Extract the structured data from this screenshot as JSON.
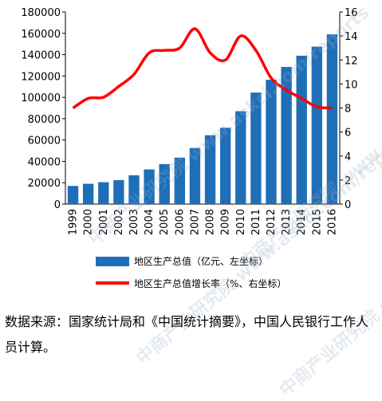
{
  "chart_data": {
    "type": "bar",
    "categories": [
      "1999",
      "2000",
      "2001",
      "2002",
      "2003",
      "2004",
      "2005",
      "2006",
      "2007",
      "2008",
      "2009",
      "2010",
      "2011",
      "2012",
      "2013",
      "2014",
      "2015",
      "2016"
    ],
    "series": [
      {
        "name": "地区生产总值（亿元、左坐标）",
        "type": "bar",
        "axis": "left",
        "color": "#1f6fb8",
        "values": [
          17000,
          19000,
          20500,
          22500,
          27000,
          32500,
          37500,
          43500,
          52500,
          64500,
          71500,
          87000,
          104500,
          116500,
          128500,
          139000,
          147500,
          159000
        ]
      },
      {
        "name": "地区生产总值增长率（%、右坐标）",
        "type": "line",
        "axis": "right",
        "color": "#ff0000",
        "values": [
          8.0,
          8.8,
          8.9,
          9.8,
          10.8,
          12.6,
          12.8,
          13.0,
          14.6,
          12.6,
          12.0,
          14.0,
          12.8,
          10.5,
          9.5,
          8.8,
          8.1,
          8.0
        ]
      }
    ],
    "ylim_left": [
      0,
      180000
    ],
    "ylim_right": [
      0,
      16
    ],
    "yticks_left": [
      "0",
      "20000",
      "40000",
      "60000",
      "80000",
      "100000",
      "120000",
      "140000",
      "160000",
      "180000"
    ],
    "yticks_right": [
      "0",
      "2",
      "4",
      "6",
      "8",
      "10",
      "12",
      "14",
      "16"
    ],
    "legend_position": "bottom",
    "grid": false
  },
  "source_note": "数据来源：国家统计局和《中国统计摘要》，中国人民银行工作人员计算。",
  "watermark_text": "中商产业研究院 www.askci.com/reports"
}
